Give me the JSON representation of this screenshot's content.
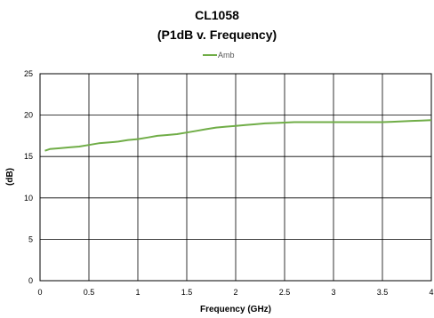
{
  "chart_data": {
    "type": "line",
    "title": "CL1058",
    "subtitle": "(P1dB v. Frequency)",
    "xlabel": "Frequency (GHz)",
    "ylabel": "(dB)",
    "xlim": [
      0,
      4
    ],
    "ylim": [
      0,
      25
    ],
    "xticks": [
      "0",
      "0.5",
      "1",
      "1.5",
      "2",
      "2.5",
      "3",
      "3.5",
      "4"
    ],
    "yticks": [
      "0",
      "5",
      "10",
      "15",
      "20",
      "25"
    ],
    "grid": true,
    "legend_position": "top-center",
    "series": [
      {
        "name": "Amb",
        "color": "#70AD47",
        "x": [
          0.05,
          0.1,
          0.2,
          0.3,
          0.4,
          0.5,
          0.6,
          0.7,
          0.8,
          0.9,
          1.0,
          1.1,
          1.2,
          1.3,
          1.4,
          1.5,
          1.6,
          1.7,
          1.8,
          1.9,
          2.0,
          2.1,
          2.2,
          2.3,
          2.4,
          2.5,
          2.6,
          2.7,
          2.8,
          2.9,
          3.0,
          3.1,
          3.2,
          3.3,
          3.4,
          3.5,
          3.6,
          3.7,
          3.8,
          3.9,
          4.0
        ],
        "y": [
          15.7,
          15.9,
          16.0,
          16.1,
          16.2,
          16.4,
          16.6,
          16.7,
          16.8,
          17.0,
          17.1,
          17.3,
          17.5,
          17.6,
          17.7,
          17.9,
          18.1,
          18.3,
          18.5,
          18.6,
          18.7,
          18.8,
          18.9,
          19.0,
          19.05,
          19.1,
          19.15,
          19.15,
          19.15,
          19.15,
          19.15,
          19.15,
          19.15,
          19.15,
          19.15,
          19.15,
          19.2,
          19.25,
          19.3,
          19.35,
          19.4
        ]
      }
    ]
  }
}
